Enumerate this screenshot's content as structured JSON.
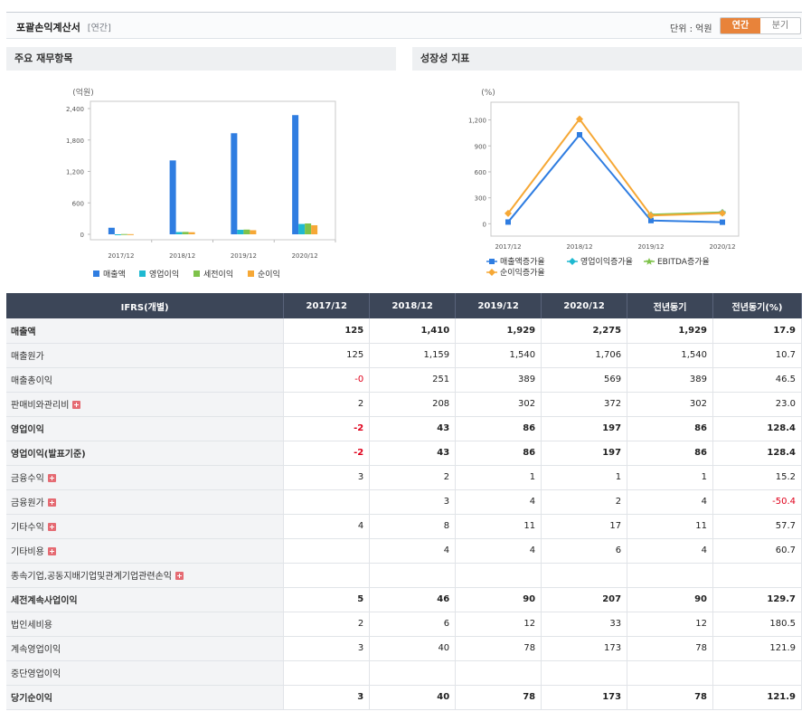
{
  "header": {
    "title": "포괄손익계산서",
    "title_sub": "[연간]",
    "unit_label": "단위 : 억원",
    "toggle": {
      "annual": "연간",
      "quarter": "분기"
    }
  },
  "left_panel": {
    "title": "주요 재무항목"
  },
  "right_panel": {
    "title": "성장성 지표"
  },
  "chart_data": [
    {
      "type": "bar",
      "unit_label": "(억원)",
      "categories": [
        "2017/12",
        "2018/12",
        "2019/12",
        "2020/12"
      ],
      "yticks": [
        "2,400",
        "1,800",
        "1,200",
        "600",
        "0"
      ],
      "ylim": [
        0,
        2400
      ],
      "series": [
        {
          "name": "매출액",
          "color": "#2f7de1",
          "values": [
            125,
            1410,
            1929,
            2275
          ]
        },
        {
          "name": "영업이익",
          "color": "#1fb9d1",
          "values": [
            -2,
            43,
            86,
            197
          ]
        },
        {
          "name": "세전이익",
          "color": "#7ec24a",
          "values": [
            5,
            46,
            90,
            207
          ]
        },
        {
          "name": "순이익",
          "color": "#f6a836",
          "values": [
            3,
            40,
            78,
            173
          ]
        }
      ],
      "legend": "bottom",
      "grid": false
    },
    {
      "type": "line",
      "unit_label": "(%)",
      "categories": [
        "2017/12",
        "2018/12",
        "2019/12",
        "2020/12"
      ],
      "yticks": [
        "1,200",
        "900",
        "600",
        "300",
        "0"
      ],
      "ylim": [
        -80,
        1300
      ],
      "series": [
        {
          "name": "매출액증가율",
          "color": "#2f7de1",
          "marker": "square",
          "values": [
            20,
            1028,
            37,
            18
          ]
        },
        {
          "name": "영업이익증가율",
          "color": "#1fb9d1",
          "marker": "diamond",
          "values": [
            null,
            null,
            100,
            129
          ]
        },
        {
          "name": "EBITDA증가율",
          "color": "#7ec24a",
          "marker": "star",
          "values": [
            null,
            null,
            105,
            132
          ]
        },
        {
          "name": "순이익증가율",
          "color": "#f6a836",
          "marker": "diamond",
          "values": [
            120,
            1210,
            95,
            122
          ]
        }
      ],
      "legend": "bottom",
      "grid": false
    }
  ],
  "table": {
    "columns": [
      "IFRS(개별)",
      "2017/12",
      "2018/12",
      "2019/12",
      "2020/12",
      "전년동기",
      "전년동기(%)"
    ],
    "rows": [
      {
        "label": "매출액",
        "bold": true,
        "plus": false,
        "values": [
          "125",
          "1,410",
          "1,929",
          "2,275",
          "1,929",
          "17.9"
        ]
      },
      {
        "label": "매출원가",
        "bold": false,
        "plus": false,
        "values": [
          "125",
          "1,159",
          "1,540",
          "1,706",
          "1,540",
          "10.7"
        ]
      },
      {
        "label": "매출총이익",
        "bold": false,
        "plus": false,
        "values": [
          "-0",
          "251",
          "389",
          "569",
          "389",
          "46.5"
        ]
      },
      {
        "label": "판매비와관리비",
        "bold": false,
        "plus": true,
        "values": [
          "2",
          "208",
          "302",
          "372",
          "302",
          "23.0"
        ]
      },
      {
        "label": "영업이익",
        "bold": true,
        "plus": false,
        "values": [
          "-2",
          "43",
          "86",
          "197",
          "86",
          "128.4"
        ]
      },
      {
        "label": "영업이익(발표기준)",
        "bold": true,
        "plus": false,
        "values": [
          "-2",
          "43",
          "86",
          "197",
          "86",
          "128.4"
        ]
      },
      {
        "label": "금융수익",
        "bold": false,
        "plus": true,
        "values": [
          "3",
          "2",
          "1",
          "1",
          "1",
          "15.2"
        ]
      },
      {
        "label": "금융원가",
        "bold": false,
        "plus": true,
        "values": [
          "",
          "3",
          "4",
          "2",
          "4",
          "-50.4"
        ]
      },
      {
        "label": "기타수익",
        "bold": false,
        "plus": true,
        "values": [
          "4",
          "8",
          "11",
          "17",
          "11",
          "57.7"
        ]
      },
      {
        "label": "기타비용",
        "bold": false,
        "plus": true,
        "values": [
          "",
          "4",
          "4",
          "6",
          "4",
          "60.7"
        ]
      },
      {
        "label": "종속기업,공동지배기업및관계기업관련손익",
        "bold": false,
        "plus": true,
        "values": [
          "",
          "",
          "",
          "",
          "",
          ""
        ]
      },
      {
        "label": "세전계속사업이익",
        "bold": true,
        "plus": false,
        "values": [
          "5",
          "46",
          "90",
          "207",
          "90",
          "129.7"
        ]
      },
      {
        "label": "법인세비용",
        "bold": false,
        "plus": false,
        "values": [
          "2",
          "6",
          "12",
          "33",
          "12",
          "180.5"
        ]
      },
      {
        "label": "계속영업이익",
        "bold": false,
        "plus": false,
        "values": [
          "3",
          "40",
          "78",
          "173",
          "78",
          "121.9"
        ]
      },
      {
        "label": "중단영업이익",
        "bold": false,
        "plus": false,
        "values": [
          "",
          "",
          "",
          "",
          "",
          ""
        ]
      },
      {
        "label": "당기순이익",
        "bold": true,
        "plus": false,
        "values": [
          "3",
          "40",
          "78",
          "173",
          "78",
          "121.9"
        ]
      }
    ]
  }
}
